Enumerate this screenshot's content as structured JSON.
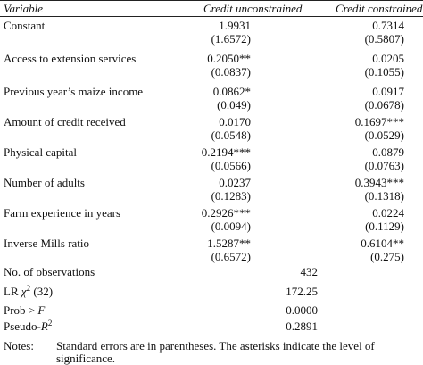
{
  "header": {
    "variable": "Variable",
    "col1": "Credit unconstrained",
    "col2": "Credit constrained"
  },
  "rows": [
    {
      "label": "Constant",
      "c1": "1.9931",
      "c1_se": "(1.6572)",
      "c2": "0.7314",
      "c2_se": "(0.5807)"
    },
    {
      "label": "Access to extension services",
      "c1": "0.2050**",
      "c1_se": "(0.0837)",
      "c2": "0.0205",
      "c2_se": "(0.1055)"
    },
    {
      "label": "Previous year’s maize income",
      "c1": "0.0862*",
      "c1_se": "(0.049)",
      "c2": "0.0917",
      "c2_se": "(0.0678)"
    },
    {
      "label": "Amount of credit received",
      "c1": "0.0170",
      "c1_se": "(0.0548)",
      "c2": "0.1697***",
      "c2_se": "(0.0529)"
    },
    {
      "label": "Physical capital",
      "c1": "0.2194***",
      "c1_se": "(0.0566)",
      "c2": "0.0879",
      "c2_se": "(0.0763)"
    },
    {
      "label": "Number of adults",
      "c1": "0.0237",
      "c1_se": "(0.1283)",
      "c2": "0.3943***",
      "c2_se": "(0.1318)"
    },
    {
      "label": "Farm experience in years",
      "c1": "0.2926***",
      "c1_se": "(0.0094)",
      "c2": "0.0224",
      "c2_se": "(0.1129)"
    },
    {
      "label": "Inverse Mills ratio",
      "c1": "1.5287**",
      "c1_se": "(0.6572)",
      "c2": "0.6104**",
      "c2_se": "(0.275)"
    }
  ],
  "stats": [
    {
      "label": "No. of observations",
      "value": "432"
    },
    {
      "label_pre": "LR ",
      "label_sym": "χ",
      "label_sup": "2",
      "label_post": " (32)",
      "value": "172.25"
    },
    {
      "label_pre": "Prob > ",
      "label_sym": "F",
      "value": "0.0000"
    },
    {
      "label_pre": "Pseudo-",
      "label_sym": "R",
      "label_sup": "2",
      "value": "0.2891"
    }
  ],
  "notes": {
    "prefix": "Notes:",
    "line1": "Standard errors are in parentheses. The asterisks indicate the level of",
    "line2": "significance."
  }
}
